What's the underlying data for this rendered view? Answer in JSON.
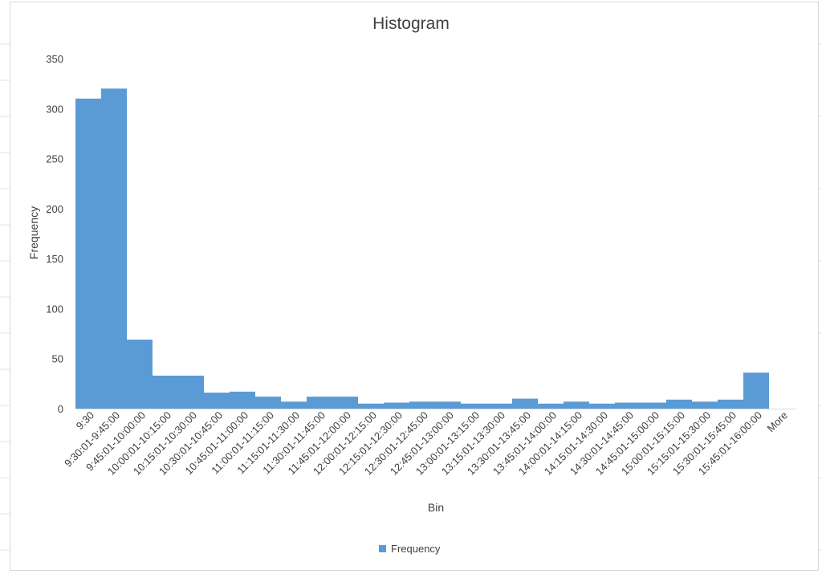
{
  "colors": {
    "bar": "#5b9bd5",
    "axis": "#d9d9d9",
    "text": "#404040"
  },
  "legend": {
    "label": "Frequency"
  },
  "chart_data": {
    "type": "bar",
    "title": "Histogram",
    "xlabel": "Bin",
    "ylabel": "Frequency",
    "ylim": [
      0,
      350
    ],
    "yticks": [
      0,
      50,
      100,
      150,
      200,
      250,
      300,
      350
    ],
    "grid": false,
    "legend_position": "bottom",
    "categories": [
      "9:30",
      "9:30:01-9:45:00",
      "9:45:01-10:00:00",
      "10:00:01-10:15:00",
      "10:15:01-10:30:00",
      "10:30:01-10:45:00",
      "10:45:01-11:00:00",
      "11:00:01-11:15:00",
      "11:15:01-11:30:00",
      "11:30:01-11:45:00",
      "11:45:01-12:00:00",
      "12:00:01-12:15:00",
      "12:15:01-12:30:00",
      "12:30:01-12:45:00",
      "12:45:01-13:00:00",
      "13:00:01-13:15:00",
      "13:15:01-13:30:00",
      "13:30:01-13:45:00",
      "13:45:01-14:00:00",
      "14:00:01-14:15:00",
      "14:15:01-14:30:00",
      "14:30:01-14:45:00",
      "14:45:01-15:00:00",
      "15:00:01-15:15:00",
      "15:15:01-15:30:00",
      "15:30:01-15:45:00",
      "15:45:01-16:00:00",
      "More"
    ],
    "series": [
      {
        "name": "Frequency",
        "values": [
          310,
          320,
          69,
          33,
          33,
          16,
          17,
          12,
          7,
          12,
          12,
          5,
          6,
          7,
          7,
          5,
          5,
          10,
          5,
          7,
          5,
          6,
          6,
          9,
          7,
          9,
          36,
          0
        ]
      }
    ]
  }
}
